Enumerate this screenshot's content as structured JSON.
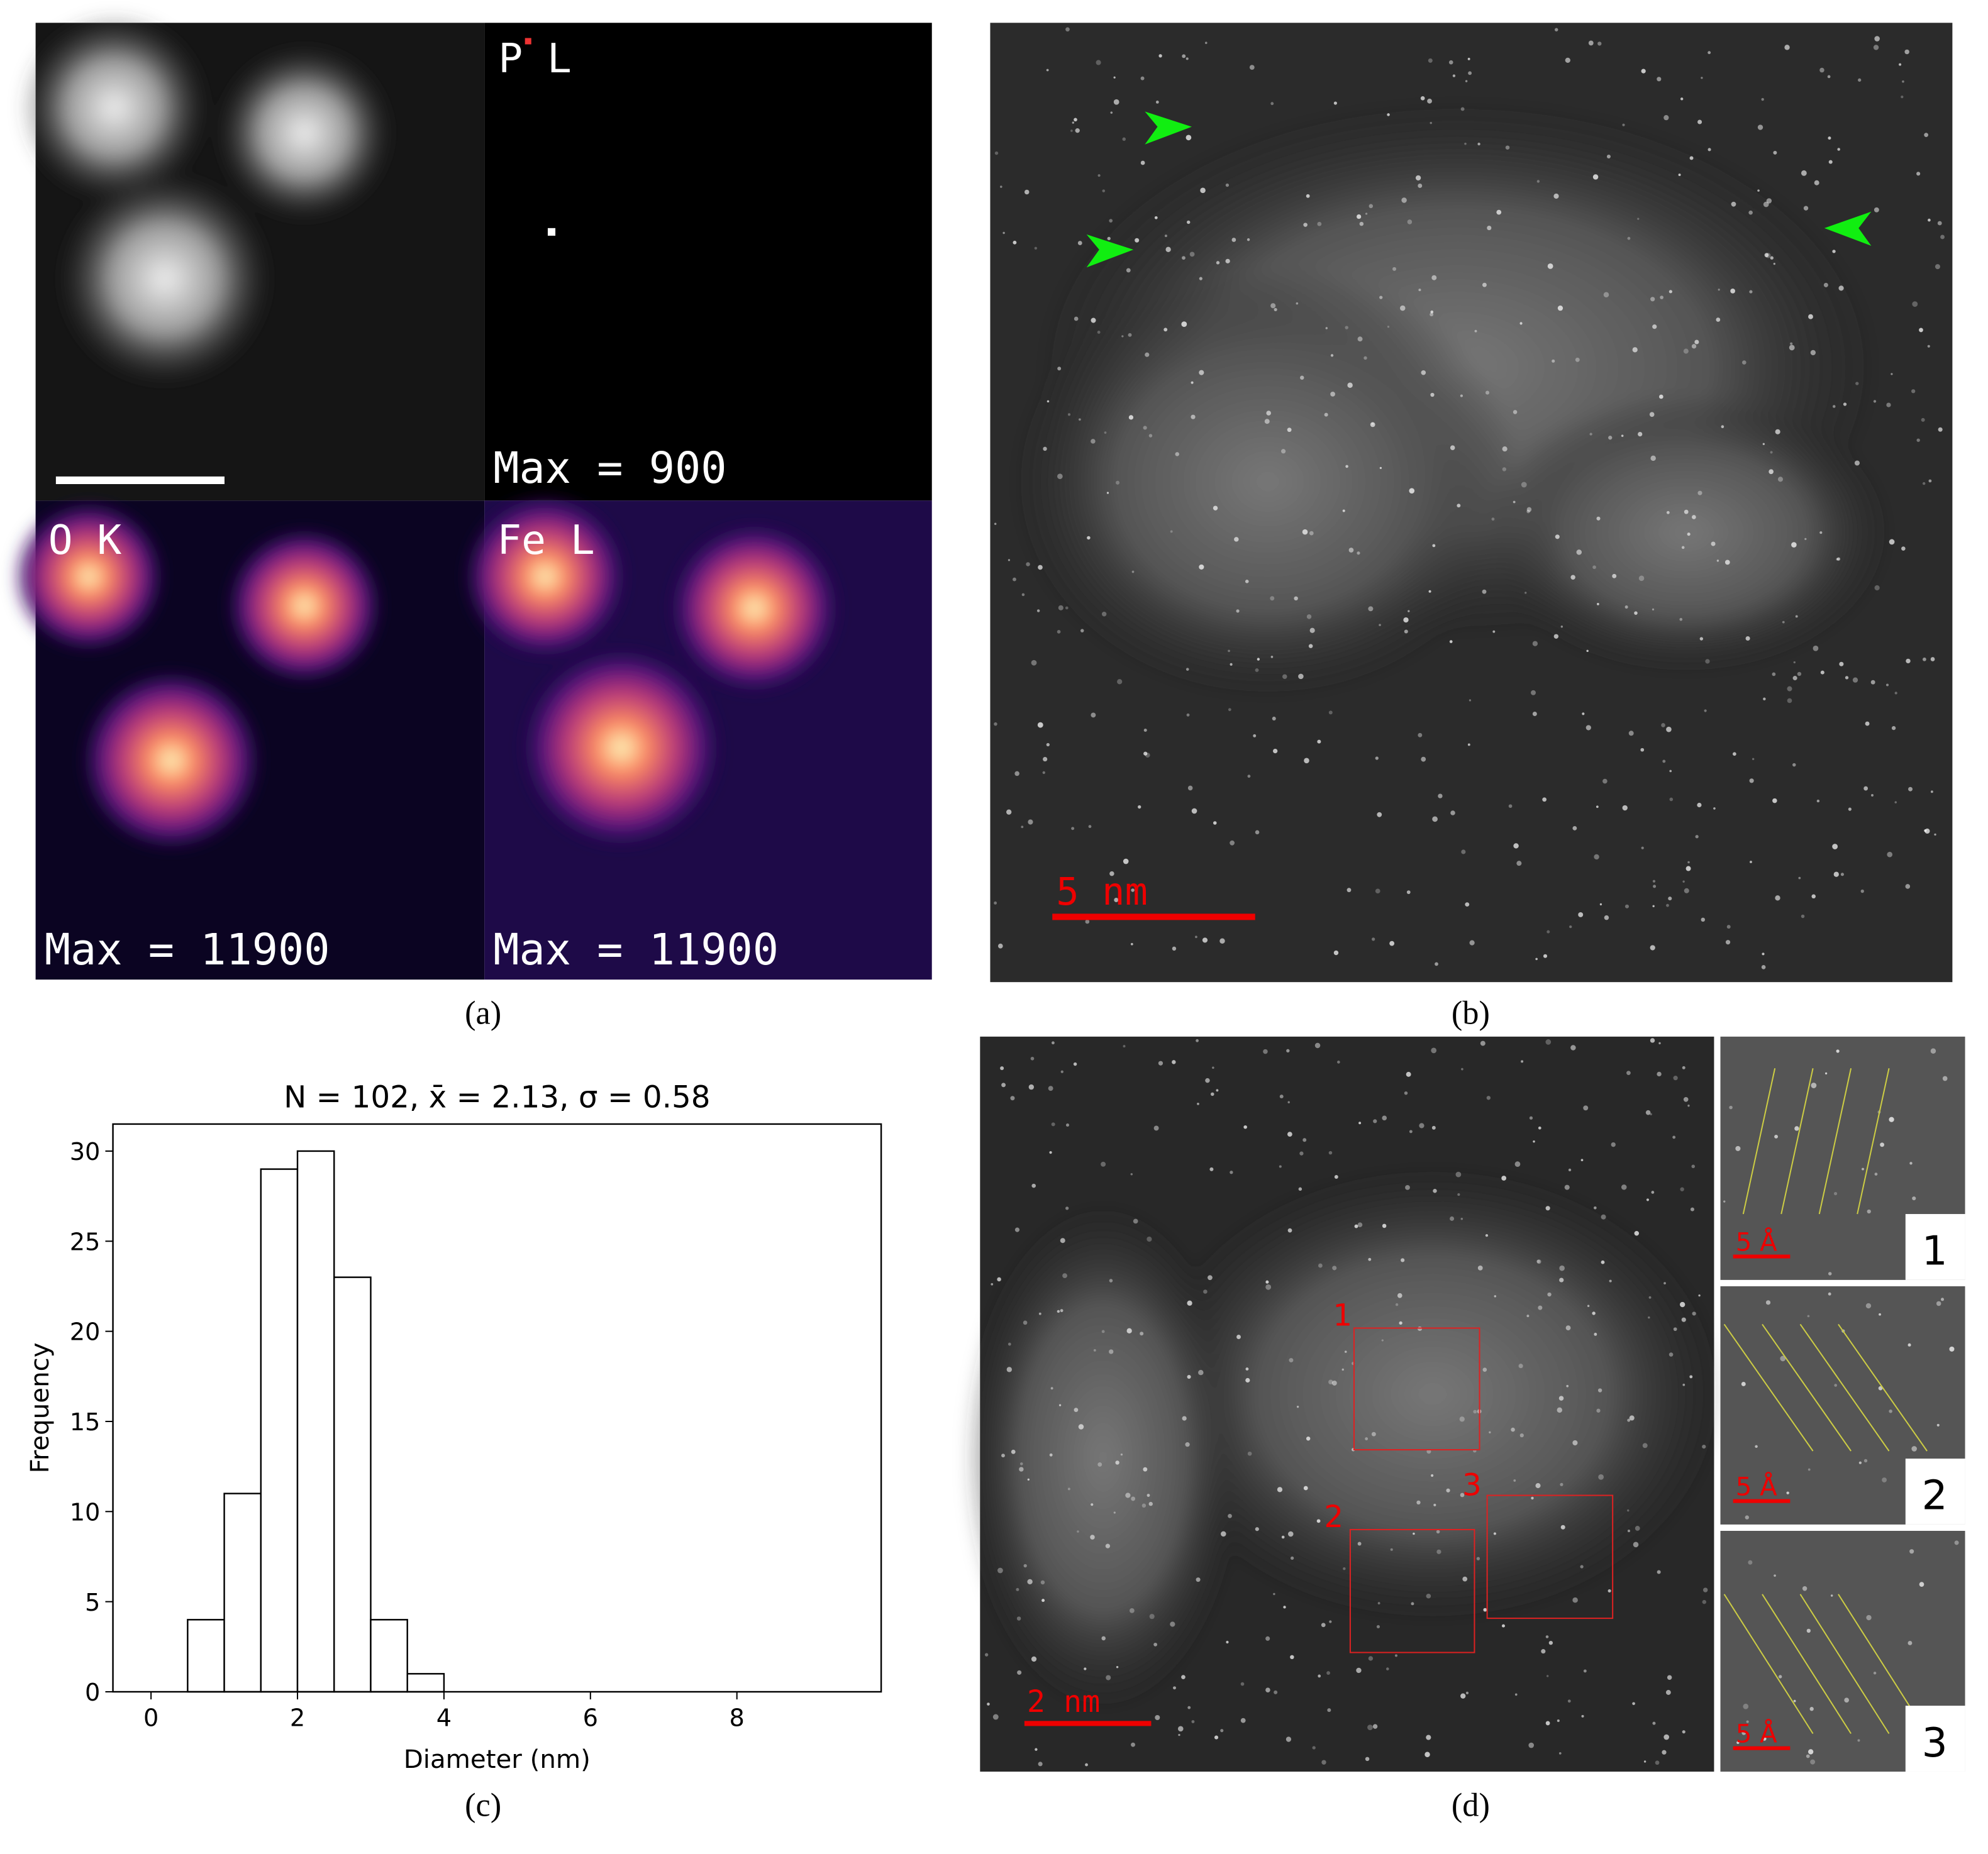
{
  "panels": {
    "a": {
      "label": "(a)",
      "maps": [
        {
          "label": "P L",
          "max": "Max = 900"
        },
        {
          "label": "O K",
          "max": "Max = 11900"
        },
        {
          "label": "Fe L",
          "max": "Max = 11900"
        }
      ]
    },
    "b": {
      "label": "(b)",
      "scale_bar": "5 nm"
    },
    "c": {
      "label": "(c)"
    },
    "d": {
      "label": "(d)",
      "scale_bar": "2 nm",
      "regions": [
        "1",
        "2",
        "3"
      ],
      "insets": [
        {
          "scale_bar": "5 Å",
          "number": "1"
        },
        {
          "scale_bar": "5 Å",
          "number": "2"
        },
        {
          "scale_bar": "5 Å",
          "number": "3"
        }
      ]
    }
  },
  "chart_data": {
    "type": "histogram",
    "title": "N = 102, x̄ = 2.13, σ = 0.58",
    "x_label": "Diameter (nm)",
    "y_label": "Frequency",
    "bins": [
      0.5,
      1,
      1.5,
      2,
      2.5,
      3,
      3.5,
      4
    ],
    "values": [
      4,
      11,
      29,
      30,
      23,
      4,
      1
    ],
    "color": "#ffffff",
    "edge_color": "#000000",
    "xlim": [
      -0.52,
      9.97
    ],
    "ylim": [
      0,
      31.5
    ],
    "xticks": [
      0,
      2,
      4,
      6,
      8
    ],
    "yticks": [
      0,
      5,
      10,
      15,
      20,
      25,
      30
    ]
  }
}
